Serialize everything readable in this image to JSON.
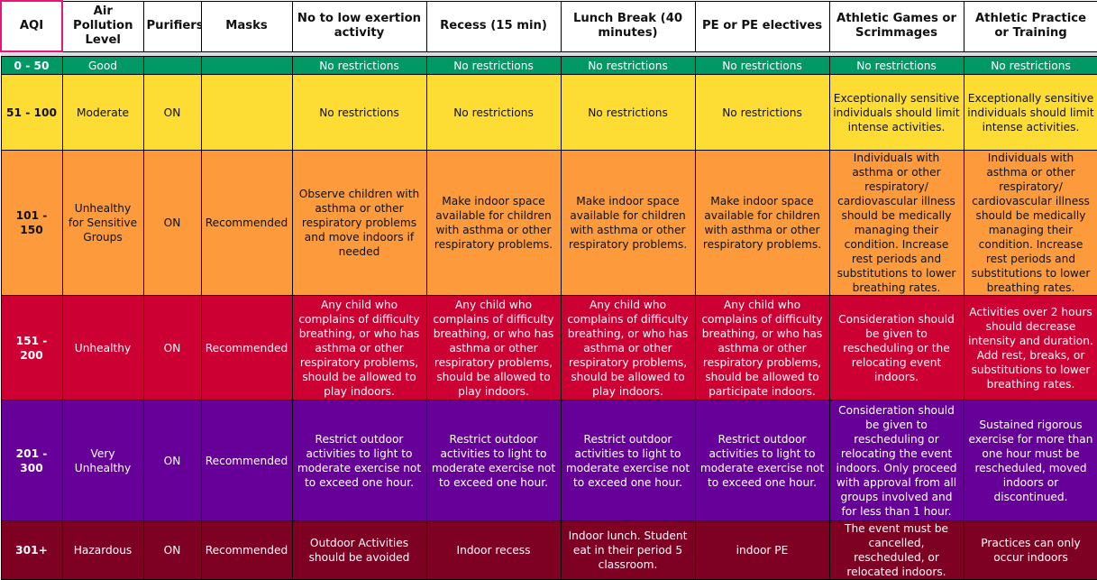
{
  "headers": [
    "AQI",
    "Air Pollution Level",
    "Purifiers",
    "Masks",
    "No to low exertion activity",
    "Recess (15 min)",
    "Lunch Break (40 minutes)",
    "PE or PE electives",
    "Athletic Games or Scrimmages",
    "Athletic Practice or Training"
  ],
  "colors": {
    "good": "#009966",
    "moderate": "#fddd33",
    "usg": "#fd9a3c",
    "unhealthy": "#cc0033",
    "very_unhealthy": "#660099",
    "hazardous": "#7e0023",
    "header_highlight": "#e8157a"
  },
  "rows": [
    {
      "level": "good",
      "text_color": "#ffffff",
      "cells": [
        "0 - 50",
        "Good",
        "",
        "",
        "No restrictions",
        "No restrictions",
        "No restrictions",
        "No restrictions",
        "No restrictions",
        "No restrictions"
      ]
    },
    {
      "level": "moderate",
      "text_color": "#111111",
      "cells": [
        "51 - 100",
        "Moderate",
        "ON",
        "",
        "No restrictions",
        "No restrictions",
        "No restrictions",
        "No restrictions",
        "Exceptionally sensitive individuals should limit intense activities.",
        "Exceptionally sensitive individuals should limit intense activities."
      ]
    },
    {
      "level": "usg",
      "text_color": "#111111",
      "cells": [
        "101 - 150",
        "Unhealthy for Sensitive Groups",
        "ON",
        "Recommended",
        "Observe children with asthma or other respiratory problems and move indoors if needed",
        "Make indoor space available for children with asthma or other respiratory problems.",
        "Make indoor space available for children with asthma or other respiratory problems.",
        "Make indoor space available for children with asthma or other respiratory problems.",
        "Individuals with asthma or other respiratory/ cardiovascular illness should be medically managing their condition. Increase rest periods and substitutions to lower breathing rates.",
        "Individuals with asthma or other respiratory/ cardiovascular illness should be medically managing their condition. Increase rest periods and substitutions to lower breathing rates."
      ]
    },
    {
      "level": "unhealthy",
      "text_color": "#ffffff",
      "cells": [
        "151 - 200",
        "Unhealthy",
        "ON",
        "Recommended",
        "Any child who complains of difficulty breathing, or who has asthma or other respiratory problems, should be allowed to play indoors.",
        "Any child who complains of difficulty breathing, or who has asthma or other respiratory problems, should be allowed to play indoors.",
        "Any child who complains of difficulty breathing, or who has asthma or other respiratory problems, should be allowed to play indoors.",
        "Any child who complains of difficulty breathing, or who has asthma or other respiratory problems, should be allowed to participate indoors.",
        "Consideration should be given to rescheduling or the relocating event indoors.",
        "Activities over 2 hours should decrease intensity and duration. Add rest, breaks, or substitutions to lower breathing rates."
      ]
    },
    {
      "level": "very_unhealthy",
      "text_color": "#ffffff",
      "cells": [
        "201 - 300",
        "Very Unhealthy",
        "ON",
        "Recommended",
        "Restrict outdoor activities to light to moderate exercise not to exceed one hour.",
        "Restrict outdoor activities to light to moderate exercise not to exceed one hour.",
        "Restrict outdoor activities to light to moderate exercise not to exceed one hour.",
        "Restrict outdoor activities to light to moderate exercise not to exceed one hour.",
        "Consideration should be given to rescheduling or relocating the event indoors. Only proceed with approval from all groups involved and for less than 1 hour.",
        "Sustained rigorous exercise for more than one hour must be rescheduled, moved indoors or discontinued."
      ]
    },
    {
      "level": "hazardous",
      "text_color": "#ffffff",
      "cells": [
        "301+",
        "Hazardous",
        "ON",
        "Recommended",
        "Outdoor Activities should be avoided",
        "Indoor recess",
        "Indoor lunch. Student eat in their period 5 classroom.",
        "indoor PE",
        "The event must be cancelled, rescheduled, or relocated indoors.",
        "Practices can only occur indoors"
      ]
    }
  ]
}
